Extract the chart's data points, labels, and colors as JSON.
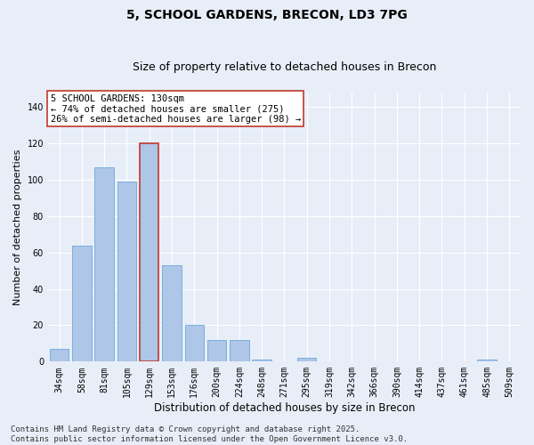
{
  "title": "5, SCHOOL GARDENS, BRECON, LD3 7PG",
  "subtitle": "Size of property relative to detached houses in Brecon",
  "xlabel": "Distribution of detached houses by size in Brecon",
  "ylabel": "Number of detached properties",
  "categories": [
    "34sqm",
    "58sqm",
    "81sqm",
    "105sqm",
    "129sqm",
    "153sqm",
    "176sqm",
    "200sqm",
    "224sqm",
    "248sqm",
    "271sqm",
    "295sqm",
    "319sqm",
    "342sqm",
    "366sqm",
    "390sqm",
    "414sqm",
    "437sqm",
    "461sqm",
    "485sqm",
    "509sqm"
  ],
  "values": [
    7,
    64,
    107,
    99,
    120,
    53,
    20,
    12,
    12,
    1,
    0,
    2,
    0,
    0,
    0,
    0,
    0,
    0,
    0,
    1,
    0
  ],
  "bar_color": "#aec6e8",
  "bar_edge_color": "#5a9fd4",
  "highlight_bar_index": 4,
  "highlight_bar_edge_color": "#c0392b",
  "background_color": "#e8eef8",
  "grid_color": "#ffffff",
  "annotation_text": "5 SCHOOL GARDENS: 130sqm\n← 74% of detached houses are smaller (275)\n26% of semi-detached houses are larger (98) →",
  "annotation_box_color": "#ffffff",
  "annotation_box_edge_color": "#c0392b",
  "footer_text": "Contains HM Land Registry data © Crown copyright and database right 2025.\nContains public sector information licensed under the Open Government Licence v3.0.",
  "ylim": [
    0,
    148
  ],
  "yticks": [
    0,
    20,
    40,
    60,
    80,
    100,
    120,
    140
  ],
  "title_fontsize": 10,
  "subtitle_fontsize": 9,
  "xlabel_fontsize": 8.5,
  "ylabel_fontsize": 8,
  "tick_fontsize": 7,
  "annotation_fontsize": 7.5,
  "footer_fontsize": 6.5
}
